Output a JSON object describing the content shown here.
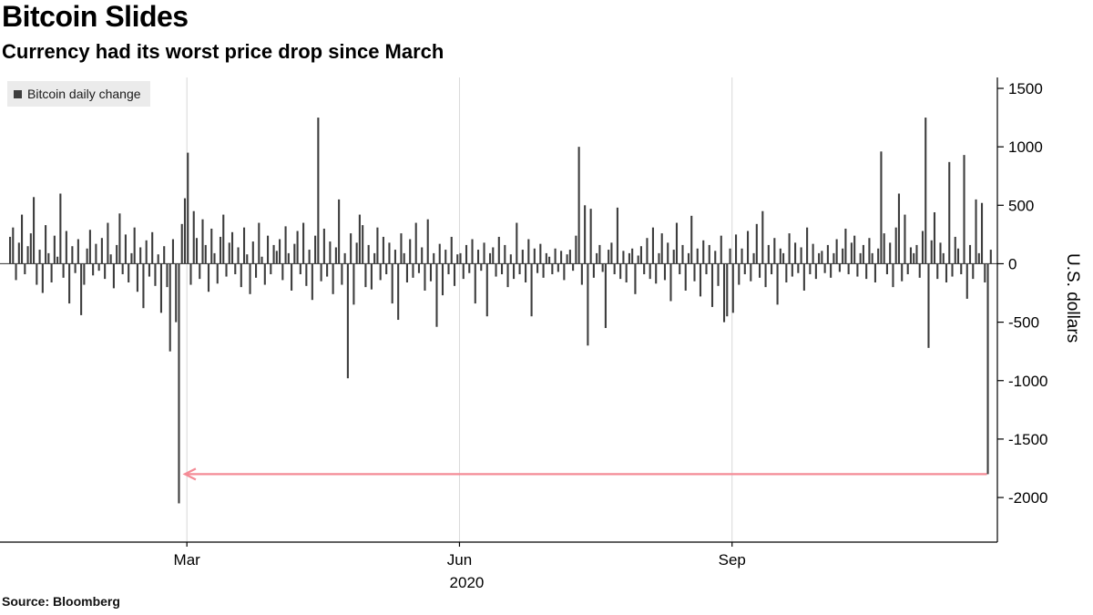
{
  "header": {
    "title": "Bitcoin Slides",
    "subtitle": "Currency had its worst price drop since March"
  },
  "legend": {
    "label": "Bitcoin daily change"
  },
  "source": "Source: Bloomberg",
  "chart_data": {
    "type": "bar",
    "title": "Bitcoin Slides",
    "subtitle": "Currency had its worst price drop since March",
    "series_name": "Bitcoin daily change",
    "ylabel": "U.S. dollars",
    "year_label": "2020",
    "ylim": [
      -2000,
      1500
    ],
    "y_ticks": [
      1500,
      1000,
      500,
      0,
      -500,
      -1000,
      -1500,
      -2000
    ],
    "x_tick_labels": [
      {
        "label": "Mar",
        "index": 60
      },
      {
        "label": "Jun",
        "index": 152
      },
      {
        "label": "Sep",
        "index": 244
      }
    ],
    "annotation_arrow": {
      "from_index": 330,
      "to_index": 59,
      "at_value": -1800
    },
    "bar_color": "#3d3d3d",
    "zero_line_color": "#4a4a4a",
    "grid_color": "#d8d8d8",
    "axis_color": "#000000",
    "arrow_color": "#f48b96",
    "grid": "vertical-quarter-lines",
    "legend_position": "top-left",
    "values": [
      230,
      310,
      -140,
      180,
      420,
      -90,
      150,
      260,
      570,
      -180,
      120,
      -250,
      330,
      90,
      -160,
      240,
      60,
      600,
      -120,
      280,
      -340,
      150,
      -80,
      210,
      -440,
      -180,
      130,
      290,
      -100,
      170,
      -60,
      220,
      -130,
      350,
      80,
      -210,
      160,
      430,
      -90,
      250,
      -160,
      90,
      310,
      -240,
      140,
      -380,
      200,
      -110,
      270,
      -190,
      80,
      -420,
      150,
      -200,
      -750,
      210,
      -500,
      -2050,
      340,
      560,
      950,
      -180,
      450,
      220,
      -130,
      380,
      160,
      -240,
      300,
      90,
      -170,
      230,
      420,
      -110,
      180,
      270,
      -90,
      140,
      -200,
      310,
      80,
      -260,
      190,
      -120,
      350,
      60,
      -180,
      240,
      -90,
      160,
      110,
      210,
      -140,
      320,
      90,
      -230,
      170,
      280,
      -90,
      350,
      -190,
      120,
      -310,
      240,
      1250,
      -150,
      300,
      -110,
      190,
      -260,
      140,
      550,
      -180,
      90,
      -980,
      260,
      -350,
      180,
      420,
      330,
      -200,
      160,
      -220,
      90,
      310,
      -140,
      230,
      -90,
      180,
      -340,
      120,
      -480,
      260,
      90,
      -160,
      210,
      -120,
      350,
      -80,
      140,
      -230,
      380,
      -150,
      90,
      -540,
      170,
      -270,
      120,
      -90,
      230,
      -190,
      80,
      90,
      -130,
      160,
      -80,
      210,
      -340,
      120,
      -60,
      180,
      -450,
      90,
      140,
      -110,
      230,
      -90,
      160,
      -200,
      80,
      -130,
      350,
      -90,
      120,
      -160,
      210,
      -450,
      130,
      -80,
      170,
      -120,
      90,
      60,
      -90,
      130,
      -70,
      110,
      -140,
      80,
      120,
      -60,
      240,
      1000,
      -180,
      500,
      -700,
      470,
      -120,
      90,
      160,
      -70,
      -550,
      120,
      180,
      -90,
      480,
      -130,
      110,
      -160,
      90,
      130,
      -260,
      70,
      150,
      -90,
      220,
      -130,
      310,
      -170,
      90,
      260,
      -140,
      180,
      -320,
      120,
      350,
      -90,
      160,
      -230,
      90,
      410,
      -150,
      130,
      -280,
      200,
      -90,
      160,
      -370,
      110,
      -190,
      240,
      -500,
      -450,
      130,
      -420,
      250,
      -180,
      130,
      -90,
      280,
      -150,
      90,
      340,
      -120,
      450,
      -200,
      160,
      -90,
      220,
      -350,
      130,
      90,
      -160,
      260,
      -110,
      180,
      -80,
      140,
      -230,
      310,
      -90,
      170,
      -130,
      90,
      110,
      -80,
      160,
      -120,
      90,
      210,
      -70,
      130,
      300,
      -90,
      180,
      240,
      -110,
      90,
      160,
      -130,
      220,
      90,
      -160,
      130,
      960,
      260,
      -90,
      180,
      -200,
      310,
      600,
      -150,
      420,
      -90,
      140,
      90,
      160,
      -120,
      280,
      1250,
      -720,
      200,
      440,
      -130,
      180,
      90,
      -160,
      870,
      -110,
      230,
      130,
      -90,
      930,
      -300,
      160,
      -130,
      550,
      90,
      520,
      -160,
      -1800,
      120
    ]
  }
}
